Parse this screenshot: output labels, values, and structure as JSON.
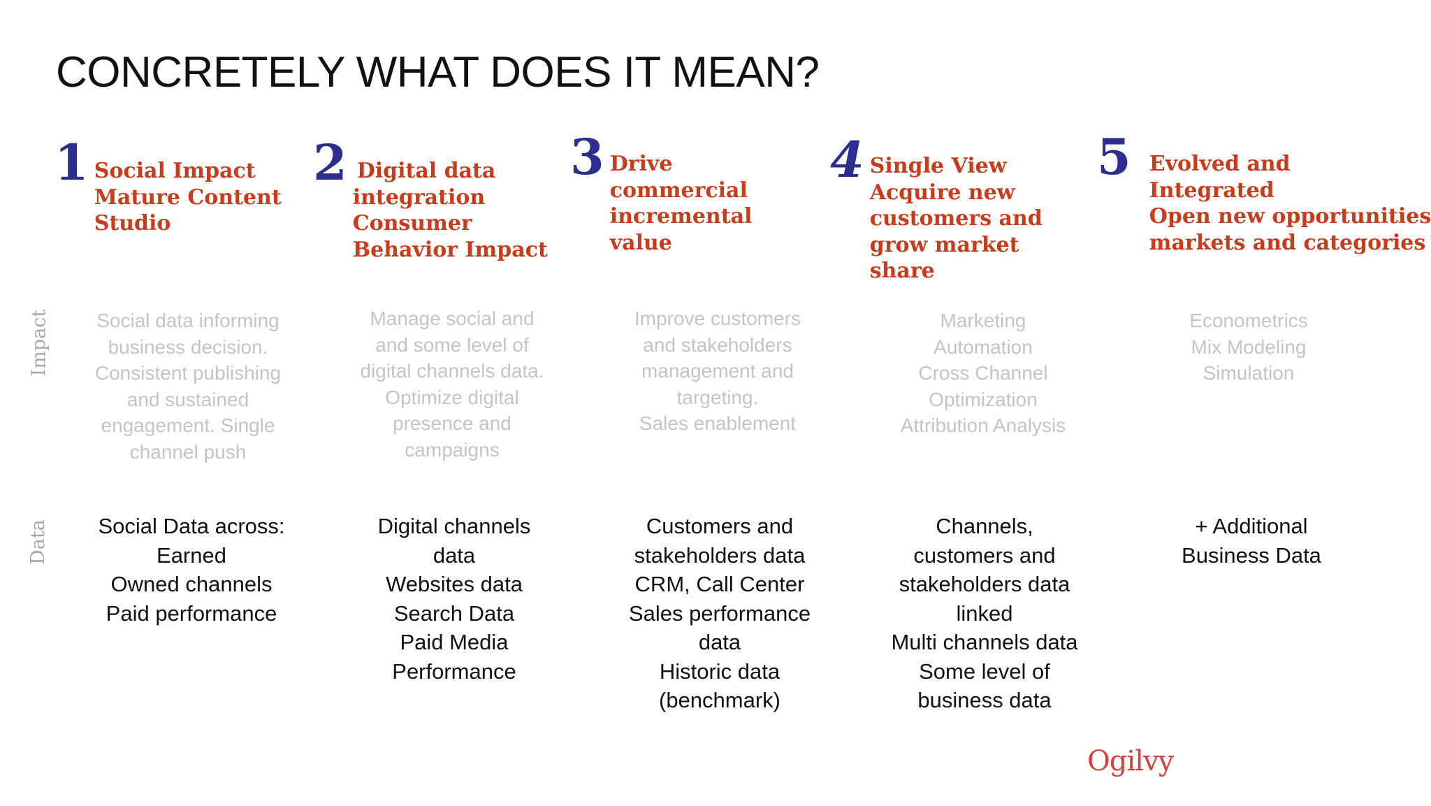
{
  "title": "CONCRETELY WHAT DOES IT MEAN?",
  "row_labels": {
    "impact": "Impact",
    "data": "Data"
  },
  "columns": [
    {
      "number": "1",
      "heading_lines": [
        "Social Impact",
        "Mature Content",
        "Studio"
      ],
      "impact_lines": [
        "Social data informing",
        "business decision.",
        "Consistent publishing",
        "and sustained",
        "engagement. Single",
        "channel push"
      ],
      "data_lines": [
        "Social Data across:",
        "Earned",
        "Owned channels",
        "Paid performance"
      ]
    },
    {
      "number": "2",
      "heading_lines": [
        "Digital data",
        "integration",
        "Consumer",
        "Behavior Impact"
      ],
      "impact_lines": [
        "Manage social and",
        "and some level of",
        "digital channels data.",
        "Optimize digital",
        "presence and",
        "campaigns"
      ],
      "data_lines": [
        "Digital channels",
        "data",
        "Websites data",
        "Search Data",
        "Paid Media",
        "Performance"
      ]
    },
    {
      "number": "3",
      "heading_lines": [
        "Drive",
        "commercial",
        "incremental",
        "value"
      ],
      "impact_lines": [
        "Improve customers",
        "and stakeholders",
        "management and",
        "targeting.",
        "Sales enablement"
      ],
      "data_lines": [
        "Customers and",
        "stakeholders data",
        "CRM, Call Center",
        "Sales performance",
        "data",
        "Historic data",
        "(benchmark)"
      ]
    },
    {
      "number": "4",
      "heading_lines": [
        "Single View",
        "Acquire new",
        "customers and",
        "grow market",
        "share"
      ],
      "impact_lines": [
        "Marketing",
        "Automation",
        "Cross Channel",
        "Optimization",
        "Attribution Analysis"
      ],
      "data_lines": [
        "Channels,",
        "customers and",
        "stakeholders data",
        "linked",
        "Multi channels data",
        "Some level of",
        "business data"
      ]
    },
    {
      "number": "5",
      "heading_lines": [
        "Evolved and",
        "Integrated",
        "Open new opportunities",
        "markets and categories"
      ],
      "impact_lines": [
        "Econometrics",
        "Mix Modeling",
        "Simulation"
      ],
      "data_lines": [
        "+ Additional",
        "Business Data"
      ]
    }
  ],
  "logo": "Ogilvy",
  "colors": {
    "heading": "#c83c1c",
    "number": "#2b2d8f",
    "impact_text": "#c4c4c4",
    "logo": "#d2413a"
  }
}
